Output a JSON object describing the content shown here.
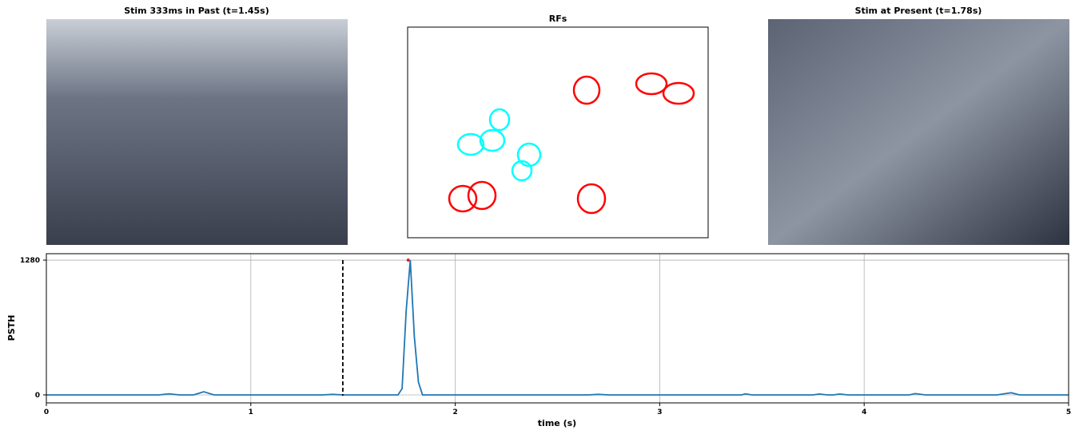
{
  "chart_data": {
    "type": "line",
    "panels": {
      "past_title": "Stim 333ms in Past (t=1.45s)",
      "rf_title": "RFs",
      "present_title": "Stim at Present (t=1.78s)"
    },
    "ylabel": "PSTH",
    "xlabel": "time (s)",
    "x": [
      0,
      0.55,
      0.6,
      0.65,
      0.72,
      0.77,
      0.82,
      1.35,
      1.4,
      1.45,
      1.72,
      1.74,
      1.76,
      1.78,
      1.8,
      1.82,
      1.84,
      2.0,
      2.65,
      2.7,
      2.75,
      3.4,
      3.42,
      3.45,
      3.75,
      3.78,
      3.82,
      3.85,
      3.88,
      3.92,
      4.22,
      4.25,
      4.3,
      4.65,
      4.7,
      4.72,
      4.76,
      5
    ],
    "series": [
      {
        "name": "PSTH",
        "color": "#1f77b4",
        "values": [
          0,
          0,
          10,
          0,
          0,
          30,
          0,
          0,
          5,
          0,
          0,
          60,
          800,
          1280,
          550,
          120,
          0,
          0,
          0,
          5,
          0,
          0,
          10,
          0,
          0,
          8,
          0,
          0,
          8,
          0,
          0,
          12,
          0,
          0,
          15,
          20,
          0,
          0
        ]
      }
    ],
    "vline": 1.45,
    "peak_marker": {
      "x": 1.77,
      "y": 1280,
      "color": "#d62728"
    },
    "xlim": [
      0,
      5
    ],
    "xticks": [
      0,
      1,
      2,
      3,
      4,
      5
    ],
    "ylim": [
      -76,
      1341
    ],
    "yticks": [
      0,
      1280
    ],
    "grid": true
  }
}
